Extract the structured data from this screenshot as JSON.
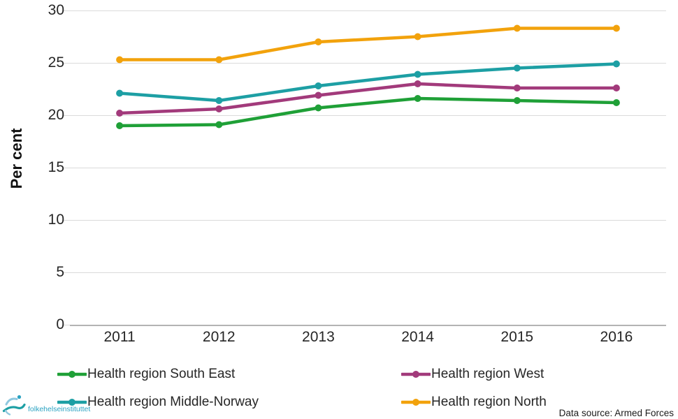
{
  "axes": {
    "y_label": "Per cent",
    "y_ticks": [
      30,
      25,
      20,
      15,
      10,
      5,
      0
    ],
    "x_ticks": [
      "2011",
      "2012",
      "2013",
      "2014",
      "2015",
      "2016"
    ]
  },
  "chart_data": {
    "type": "line",
    "title": "",
    "xlabel": "",
    "ylabel": "Per cent",
    "x": [
      "2011",
      "2012",
      "2013",
      "2014",
      "2015",
      "2016"
    ],
    "ylim": [
      0,
      30
    ],
    "ytick_step": 5,
    "grid": "horizontal",
    "legend_position": "bottom, two columns",
    "markers": "circle",
    "series": [
      {
        "name": "Health region South East",
        "color": "#1fa037",
        "values": [
          19.0,
          19.1,
          20.7,
          21.6,
          21.4,
          21.2
        ]
      },
      {
        "name": "Health region West",
        "color": "#a23a7b",
        "values": [
          20.2,
          20.6,
          21.9,
          23.0,
          22.6,
          22.6
        ]
      },
      {
        "name": "Health region Middle-Norway",
        "color": "#1d9fa4",
        "values": [
          22.1,
          21.4,
          22.8,
          23.9,
          24.5,
          24.9
        ]
      },
      {
        "name": "Health region North",
        "color": "#f2a20c",
        "values": [
          25.3,
          25.3,
          27.0,
          27.5,
          28.3,
          28.3
        ]
      }
    ]
  },
  "footer": {
    "data_source": "Data source: Armed Forces",
    "logo_text": "folkehelseinstituttet"
  },
  "colors": {
    "gridline": "#dadada",
    "axis_line": "#b3b3b3",
    "tick_text": "#262626",
    "logo_teal": "#1d9fa4",
    "logo_blue": "#8fc8df",
    "logo_text_teal": "#2ba3c2"
  }
}
